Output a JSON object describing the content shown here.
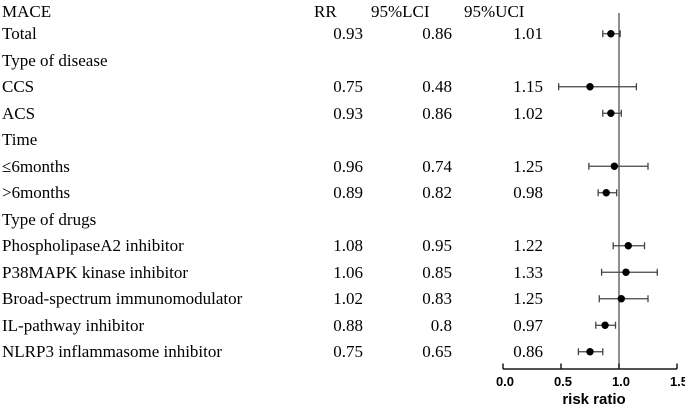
{
  "table": {
    "headers": {
      "label": "MACE",
      "rr": "RR",
      "lci": "95%LCI",
      "uci": "95%UCI"
    },
    "rows": [
      {
        "kind": "data",
        "label": "Total",
        "rr": "0.93",
        "lci": "0.86",
        "uci": "1.01"
      },
      {
        "kind": "group",
        "label": "Type of disease"
      },
      {
        "kind": "data",
        "label": "CCS",
        "rr": "0.75",
        "lci": "0.48",
        "uci": "1.15"
      },
      {
        "kind": "data",
        "label": "ACS",
        "rr": "0.93",
        "lci": "0.86",
        "uci": "1.02"
      },
      {
        "kind": "group",
        "label": "Time"
      },
      {
        "kind": "data",
        "label": "≤6months",
        "rr": "0.96",
        "lci": "0.74",
        "uci": "1.25"
      },
      {
        "kind": "data",
        "label": ">6months",
        "rr": "0.89",
        "lci": "0.82",
        "uci": "0.98"
      },
      {
        "kind": "group",
        "label": "Type of drugs"
      },
      {
        "kind": "data",
        "label": "PhospholipaseA2 inhibitor",
        "rr": "1.08",
        "lci": "0.95",
        "uci": "1.22"
      },
      {
        "kind": "data",
        "label": "P38MAPK kinase inhibitor",
        "rr": "1.06",
        "lci": "0.85",
        "uci": "1.33"
      },
      {
        "kind": "data",
        "label": "Broad-spectrum immunomodulator",
        "rr": "1.02",
        "lci": "0.83",
        "uci": "1.25"
      },
      {
        "kind": "data",
        "label": "IL-pathway inhibitor",
        "rr": "0.88",
        "lci": "0.8",
        "uci": "0.97"
      },
      {
        "kind": "data",
        "label": "NLRP3 inflammasome inhibitor",
        "rr": "0.75",
        "lci": "0.65",
        "uci": "0.86"
      }
    ]
  },
  "chart_data": {
    "type": "forest",
    "outcome": "MACE",
    "xlabel": "risk ratio",
    "x_ticks": [
      "0.0",
      "0.5",
      "1.0",
      "1.5"
    ],
    "xlim": [
      0,
      1.5
    ],
    "reference_line": 1.0,
    "series": [
      {
        "name": "Total",
        "rr": 0.93,
        "lci": 0.86,
        "uci": 1.01
      },
      {
        "name": "CCS",
        "rr": 0.75,
        "lci": 0.48,
        "uci": 1.15
      },
      {
        "name": "ACS",
        "rr": 0.93,
        "lci": 0.86,
        "uci": 1.02
      },
      {
        "name": "≤6months",
        "rr": 0.96,
        "lci": 0.74,
        "uci": 1.25
      },
      {
        "name": ">6months",
        "rr": 0.89,
        "lci": 0.82,
        "uci": 0.98
      },
      {
        "name": "PhospholipaseA2 inhibitor",
        "rr": 1.08,
        "lci": 0.95,
        "uci": 1.22
      },
      {
        "name": "P38MAPK kinase inhibitor",
        "rr": 1.06,
        "lci": 0.85,
        "uci": 1.33
      },
      {
        "name": "Broad-spectrum immunomodulator",
        "rr": 1.02,
        "lci": 0.83,
        "uci": 1.25
      },
      {
        "name": "IL-pathway inhibitor",
        "rr": 0.88,
        "lci": 0.8,
        "uci": 0.97
      },
      {
        "name": "NLRP3 inflammasome inhibitor",
        "rr": 0.75,
        "lci": 0.65,
        "uci": 0.86
      }
    ],
    "colors": {
      "marker": "#000000",
      "error_bar": "#444444",
      "axis": "#1a1a1a",
      "text": "#000000"
    }
  }
}
